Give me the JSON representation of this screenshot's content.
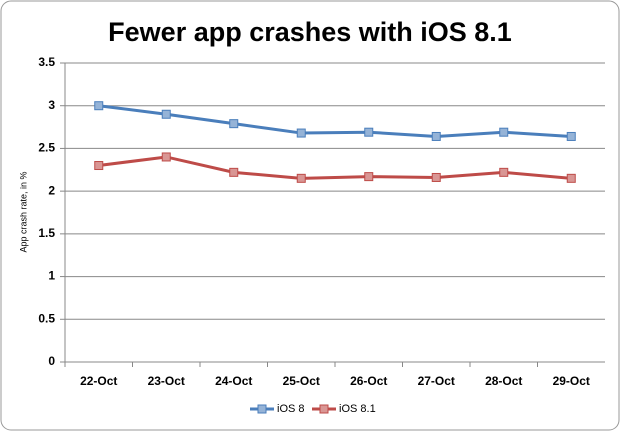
{
  "chart_data": {
    "type": "line",
    "title": "Fewer app crashes with iOS 8.1",
    "y_label": "App crash rate, in %",
    "categories": [
      "22-Oct",
      "23-Oct",
      "24-Oct",
      "25-Oct",
      "26-Oct",
      "27-Oct",
      "28-Oct",
      "29-Oct"
    ],
    "series": [
      {
        "name": "iOS 8",
        "color": "#4a7ebb",
        "values": [
          3.0,
          2.9,
          2.79,
          2.68,
          2.69,
          2.64,
          2.69,
          2.64
        ]
      },
      {
        "name": "iOS 8.1",
        "color": "#be4b48",
        "values": [
          2.3,
          2.4,
          2.22,
          2.15,
          2.17,
          2.16,
          2.22,
          2.15
        ]
      }
    ],
    "ylim": [
      0,
      3.5
    ],
    "yticks": [
      0,
      0.5,
      1,
      1.5,
      2,
      2.5,
      3,
      3.5
    ],
    "grid": true,
    "legend": "bottom"
  }
}
